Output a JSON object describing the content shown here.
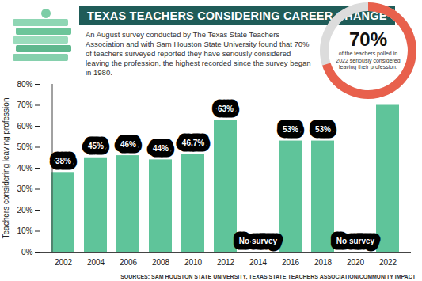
{
  "chart_data": {
    "type": "bar",
    "title": "TEXAS TEACHERS CONSIDERING CAREER CHANGE",
    "subtitle": "An August survey conducted by The Texas State Teachers Association and with Sam Houston State University found that 70% of teachers surveyed reported they have seriously considered leaving the profession, the highest recorded since the survey began in 1980.",
    "y_label": "Teachers considering leaving profession",
    "source": "SOURCES: SAM HOUSTON STATE UNIVERSITY, TEXAS STATE TEACHERS ASSOCIATION/COMMUNITY IMPACT",
    "categories": [
      "2002",
      "2004",
      "2006",
      "2008",
      "2010",
      "2012",
      "2014",
      "2016",
      "2018",
      "2020",
      "2022"
    ],
    "values": [
      38,
      45,
      46,
      44,
      46.7,
      63,
      null,
      53,
      53,
      null,
      70
    ],
    "value_labels": [
      "38%",
      "45%",
      "46%",
      "44%",
      "46.7%",
      "63%",
      "No survey",
      "53%",
      "53%",
      "No survey",
      null
    ],
    "color": "#5fc49a",
    "ylim": [
      0,
      80
    ],
    "yticks": [
      {
        "value": 0,
        "label": "0%"
      },
      {
        "value": 10,
        "label": "10%"
      },
      {
        "value": 20,
        "label": "20%"
      },
      {
        "value": 30,
        "label": "30%"
      },
      {
        "value": 40,
        "label": "40%"
      },
      {
        "value": 50,
        "label": "50%"
      },
      {
        "value": 60,
        "label": "60%"
      },
      {
        "value": 70,
        "label": "70%"
      },
      {
        "value": 80,
        "label": "80%"
      }
    ],
    "grid": false,
    "data_labels": true,
    "callout": {
      "type": "pie",
      "value": 70,
      "total": 100,
      "label": "70%",
      "text": "of the teachers polled in 2022 seriously considered leaving their profession.",
      "colors": [
        "#e8604c",
        "#dcdcdc"
      ]
    }
  }
}
